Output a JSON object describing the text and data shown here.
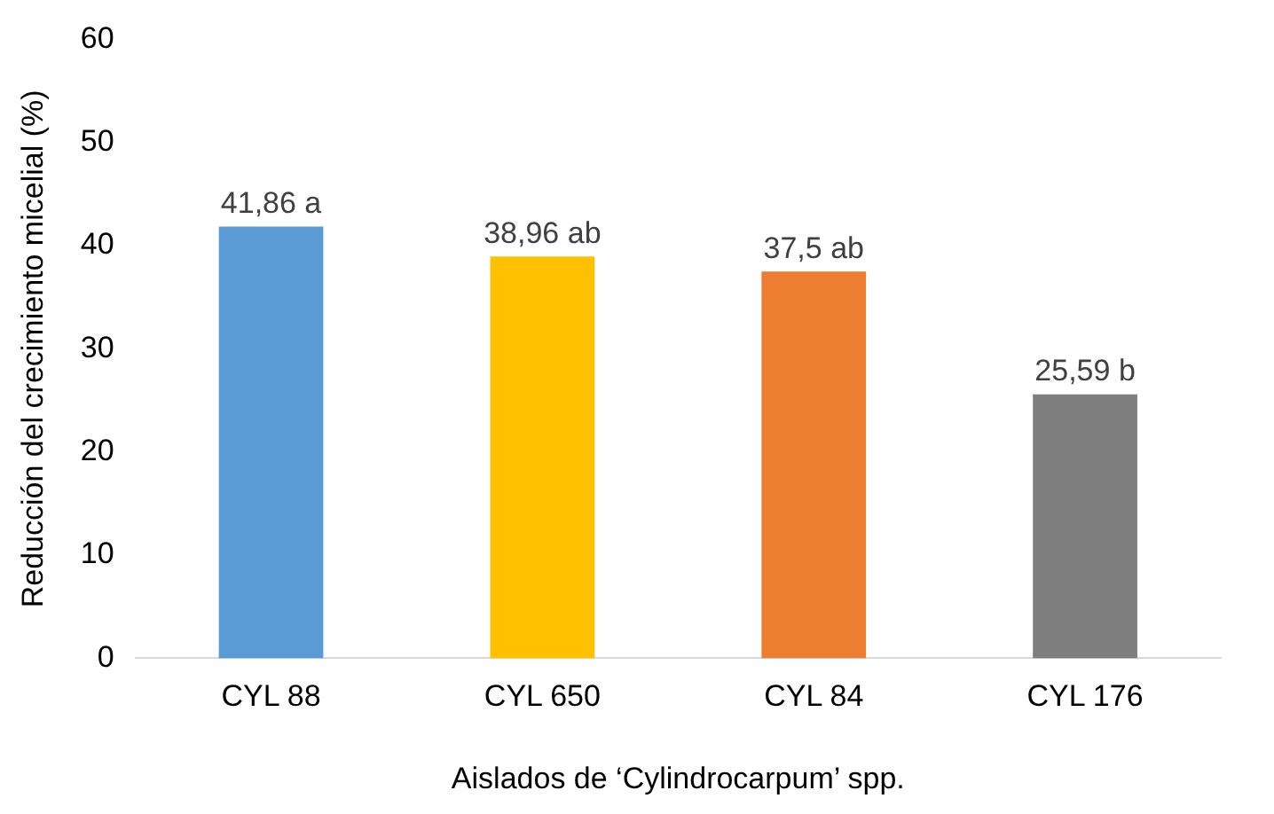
{
  "chart_data": {
    "type": "bar",
    "xlabel": "Aislados de ‘Cylindrocarpum’ spp.",
    "ylabel": "Reducción del crecimiento micelial (%)",
    "categories": [
      "CYL 88",
      "CYL 650",
      "CYL 84",
      "CYL 176"
    ],
    "values": [
      41.86,
      38.96,
      37.5,
      25.59
    ],
    "colors": [
      "#5b9bd5",
      "#ffc000",
      "#ed7d31",
      "#7f7f7f"
    ],
    "value_labels": [
      "41,86 a",
      "38,96 ab",
      "37,5 ab",
      "25,59 b"
    ],
    "ylim": [
      0,
      60
    ],
    "yticks": [
      0,
      10,
      20,
      30,
      40,
      50,
      60
    ],
    "grid": false,
    "legend": false
  }
}
